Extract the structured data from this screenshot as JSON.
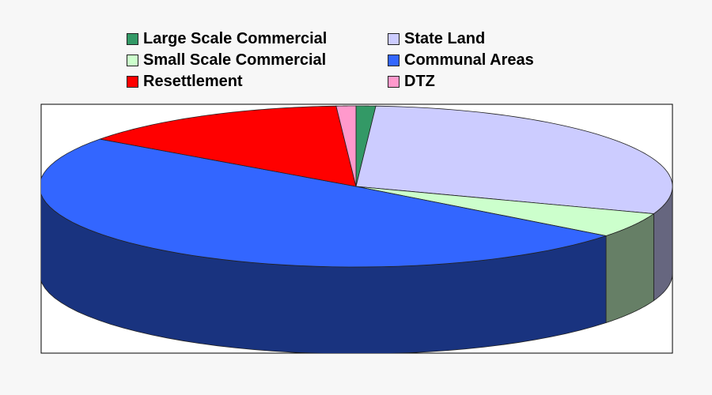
{
  "chart_data": {
    "type": "pie",
    "style": "3d",
    "legend_position": "top",
    "start_angle": "top, clockwise",
    "slices": [
      {
        "name": "Large Scale Commercial",
        "value": 1.0,
        "color": "#339966"
      },
      {
        "name": "State Land",
        "value": 29.5,
        "color": "#ccccff"
      },
      {
        "name": "Small Scale Commercial",
        "value": 5.0,
        "color": "#ccffcc"
      },
      {
        "name": "Communal Areas",
        "value": 49.5,
        "color": "#3366ff"
      },
      {
        "name": "Resettlement",
        "value": 14.0,
        "color": "#ff0000"
      },
      {
        "name": "DTZ",
        "value": 1.0,
        "color": "#ff99cc"
      }
    ]
  }
}
